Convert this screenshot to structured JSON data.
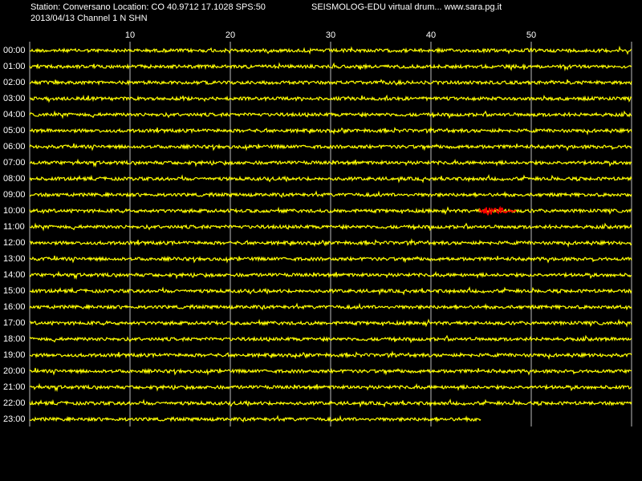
{
  "header": {
    "station": "Station: Conversano Location: CO 40.9712 17.1028 SPS:50",
    "program": "SEISMOLOG-EDU virtual drum... www.sara.pg.it",
    "channel": "2013/04/13  Channel 1 N SHN"
  },
  "chart_data": {
    "type": "helicorder",
    "xlim": [
      0,
      60
    ],
    "xticks": [
      10,
      20,
      30,
      40,
      50
    ],
    "grid": true,
    "rows": [
      "00:00",
      "01:00",
      "02:00",
      "03:00",
      "04:00",
      "05:00",
      "06:00",
      "07:00",
      "08:00",
      "09:00",
      "10:00",
      "11:00",
      "12:00",
      "13:00",
      "14:00",
      "15:00",
      "16:00",
      "17:00",
      "18:00",
      "19:00",
      "20:00",
      "21:00",
      "22:00",
      "23:00"
    ],
    "color": "#ffff00",
    "last_row_end": 45,
    "event": {
      "row": 10,
      "start": 44.8,
      "end": 48.5,
      "color": "#ff0000"
    }
  }
}
